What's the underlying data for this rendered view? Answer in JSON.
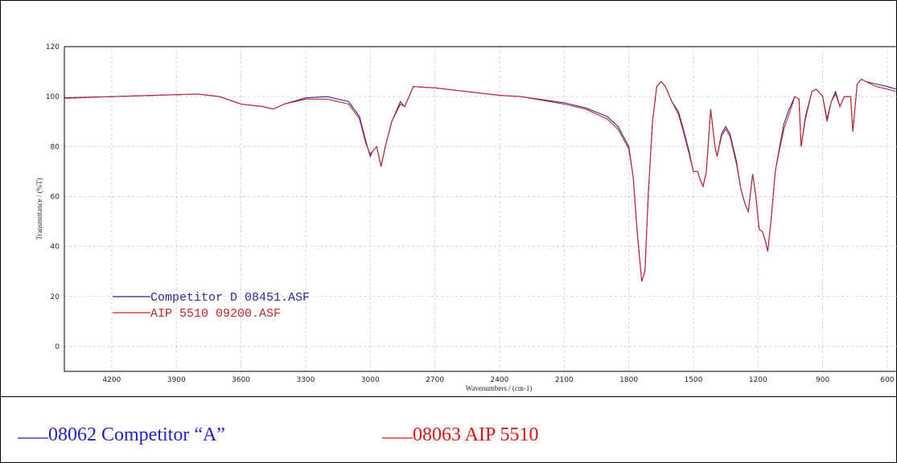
{
  "chart_data": {
    "type": "line",
    "x_label": "Wavenumbers / (cm-1)",
    "y_label": "Transmittance / (%T)",
    "x": [
      4420,
      4200,
      4000,
      3800,
      3700,
      3600,
      3500,
      3450,
      3400,
      3300,
      3200,
      3100,
      3050,
      3020,
      3000,
      2990,
      2970,
      2950,
      2930,
      2900,
      2860,
      2840,
      2800,
      2700,
      2500,
      2400,
      2300,
      2100,
      2000,
      1900,
      1850,
      1800,
      1780,
      1760,
      1740,
      1725,
      1710,
      1690,
      1670,
      1650,
      1630,
      1600,
      1570,
      1550,
      1520,
      1500,
      1480,
      1470,
      1455,
      1440,
      1420,
      1400,
      1390,
      1370,
      1350,
      1330,
      1300,
      1280,
      1260,
      1245,
      1225,
      1210,
      1195,
      1180,
      1165,
      1155,
      1140,
      1120,
      1100,
      1080,
      1060,
      1040,
      1030,
      1010,
      1000,
      980,
      950,
      930,
      900,
      880,
      860,
      840,
      820,
      800,
      770,
      760,
      740,
      720,
      700,
      650,
      600,
      560
    ],
    "series": [
      {
        "name": "Competitor D 08451.ASF",
        "color": "#2b2b9a",
        "values": [
          99.5,
          100,
          100.5,
          101,
          100,
          97,
          96,
          95,
          97,
          99.5,
          100,
          98,
          92,
          82,
          76,
          78,
          80,
          72,
          80,
          90,
          98,
          96,
          104,
          103.5,
          101.5,
          100.5,
          100,
          97.5,
          95.5,
          92,
          88,
          80,
          68,
          45,
          26,
          30,
          60,
          90,
          104,
          106,
          104,
          98,
          94,
          88,
          78,
          70,
          70,
          67,
          64,
          70,
          95,
          80,
          76,
          85,
          88,
          85,
          74,
          63,
          57,
          54,
          69,
          60,
          47,
          46,
          42,
          38,
          50,
          70,
          80,
          89,
          94,
          98,
          100,
          99,
          80,
          92,
          102,
          103,
          100,
          91,
          98,
          102,
          96,
          100,
          100,
          86,
          105,
          107,
          106,
          105,
          104,
          103
        ]
      },
      {
        "name": "AIP 5510 09200.ASF",
        "color": "#c0282a",
        "values": [
          99.3,
          100,
          100.5,
          101,
          100,
          97,
          96,
          95,
          97,
          99,
          99,
          97,
          91,
          81,
          77,
          78,
          80,
          72,
          80,
          90,
          97,
          96,
          104,
          103.5,
          101.5,
          100.5,
          100,
          97,
          95,
          91,
          87,
          79,
          68,
          45,
          26,
          30,
          60,
          90,
          104,
          106,
          104,
          98,
          93,
          87,
          77,
          70,
          70,
          67,
          64,
          70,
          95,
          80,
          76,
          84,
          87,
          84,
          73,
          63,
          57,
          54,
          69,
          60,
          47,
          46,
          42,
          38,
          50,
          70,
          79,
          87,
          92,
          97,
          100,
          99,
          80,
          91,
          102,
          103,
          100,
          90,
          98,
          101,
          96,
          100,
          100,
          86,
          105,
          107,
          106,
          104,
          103,
          102
        ]
      }
    ],
    "xlim": [
      4420,
      555
    ],
    "ylim": [
      -10,
      120
    ],
    "xticks": [
      4200,
      3900,
      3600,
      3300,
      3000,
      2700,
      2400,
      2100,
      1800,
      1500,
      1200,
      900,
      600
    ],
    "yticks": [
      0,
      20,
      40,
      60,
      80,
      100,
      120
    ],
    "grid": true,
    "annotations": [
      {
        "text": "08062 Competitor “A”",
        "color": "#1f1fd0"
      },
      {
        "text": "08063 AIP 5510",
        "color": "#e01010"
      }
    ]
  }
}
